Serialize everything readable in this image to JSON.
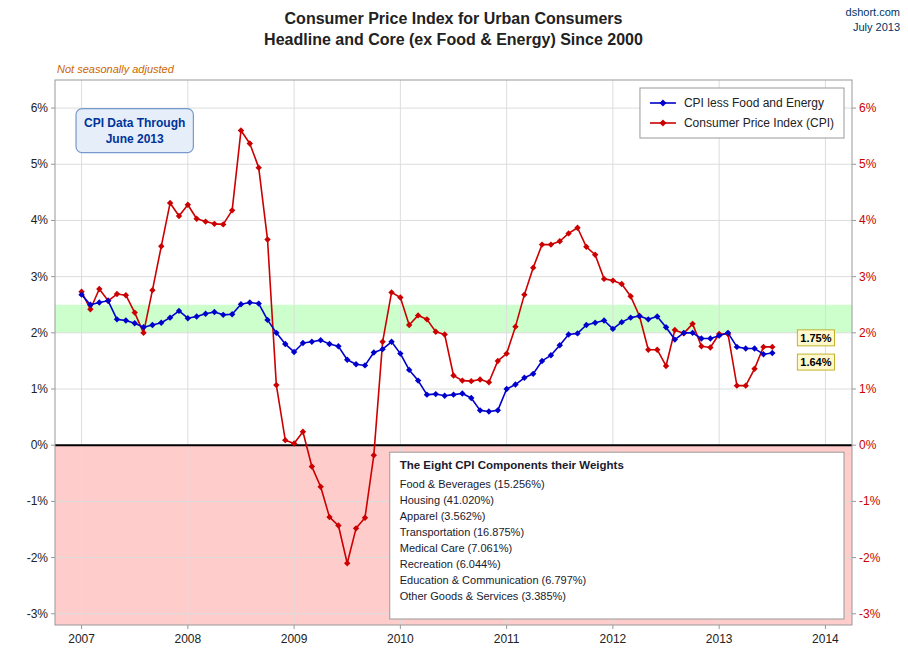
{
  "chart_data": {
    "type": "line",
    "title": "Consumer Price Index for Urban Consumers\nHeadline and Core (ex Food & Energy) Since 2000",
    "subtitle": "Not seasonally adjusted",
    "x": [
      2007.0,
      2007.083,
      2007.167,
      2007.25,
      2007.333,
      2007.417,
      2007.5,
      2007.583,
      2007.667,
      2007.75,
      2007.833,
      2007.917,
      2008.0,
      2008.083,
      2008.167,
      2008.25,
      2008.333,
      2008.417,
      2008.5,
      2008.583,
      2008.667,
      2008.75,
      2008.833,
      2008.917,
      2009.0,
      2009.083,
      2009.167,
      2009.25,
      2009.333,
      2009.417,
      2009.5,
      2009.583,
      2009.667,
      2009.75,
      2009.833,
      2009.917,
      2010.0,
      2010.083,
      2010.167,
      2010.25,
      2010.333,
      2010.417,
      2010.5,
      2010.583,
      2010.667,
      2010.75,
      2010.833,
      2010.917,
      2011.0,
      2011.083,
      2011.167,
      2011.25,
      2011.333,
      2011.417,
      2011.5,
      2011.583,
      2011.667,
      2011.75,
      2011.833,
      2011.917,
      2012.0,
      2012.083,
      2012.167,
      2012.25,
      2012.333,
      2012.417,
      2012.5,
      2012.583,
      2012.667,
      2012.75,
      2012.833,
      2012.917,
      2013.0,
      2013.083,
      2013.167,
      2013.25,
      2013.333,
      2013.417,
      2013.5
    ],
    "series": [
      {
        "name": "CPI less Food and Energy",
        "color": "#0000cc",
        "marker": "diamond",
        "values": [
          2.68,
          2.5,
          2.54,
          2.57,
          2.24,
          2.22,
          2.17,
          2.1,
          2.14,
          2.18,
          2.27,
          2.39,
          2.26,
          2.29,
          2.34,
          2.37,
          2.32,
          2.33,
          2.51,
          2.54,
          2.52,
          2.23,
          2.0,
          1.8,
          1.66,
          1.82,
          1.84,
          1.87,
          1.8,
          1.76,
          1.52,
          1.44,
          1.42,
          1.65,
          1.71,
          1.84,
          1.63,
          1.34,
          1.15,
          0.9,
          0.91,
          0.88,
          0.9,
          0.92,
          0.84,
          0.62,
          0.6,
          0.62,
          1.0,
          1.08,
          1.2,
          1.27,
          1.5,
          1.6,
          1.78,
          1.97,
          1.99,
          2.14,
          2.18,
          2.22,
          2.07,
          2.19,
          2.27,
          2.3,
          2.24,
          2.29,
          2.1,
          1.88,
          2.0,
          2.0,
          1.9,
          1.9,
          1.95,
          2.0,
          1.75,
          1.72,
          1.72,
          1.62,
          1.64
        ]
      },
      {
        "name": "Consumer Price Index (CPI)",
        "color": "#cc0000",
        "marker": "diamond",
        "values": [
          2.73,
          2.42,
          2.78,
          2.57,
          2.69,
          2.67,
          2.36,
          2.0,
          2.76,
          3.54,
          4.31,
          4.08,
          4.28,
          4.03,
          3.98,
          3.94,
          3.93,
          4.18,
          5.6,
          5.37,
          4.94,
          3.66,
          1.07,
          0.09,
          0.03,
          0.24,
          -0.38,
          -0.74,
          -1.28,
          -1.43,
          -2.1,
          -1.48,
          -1.29,
          -0.18,
          1.84,
          2.72,
          2.63,
          2.14,
          2.31,
          2.24,
          2.02,
          1.97,
          1.24,
          1.15,
          1.14,
          1.17,
          1.12,
          1.5,
          1.63,
          2.11,
          2.68,
          3.16,
          3.57,
          3.57,
          3.63,
          3.77,
          3.87,
          3.53,
          3.39,
          2.96,
          2.93,
          2.87,
          2.65,
          2.3,
          1.7,
          1.7,
          1.41,
          2.05,
          1.99,
          2.16,
          1.76,
          1.74,
          1.98,
          1.98,
          1.06,
          1.06,
          1.36,
          1.75,
          1.75
        ]
      }
    ],
    "xlim": [
      2006.75,
      2014.25
    ],
    "xticks": [
      2007,
      2008,
      2009,
      2010,
      2011,
      2012,
      2013,
      2014
    ],
    "ylim": [
      -3.2,
      6.5
    ],
    "yticks": [
      {
        "value": -3,
        "label": "-3%"
      },
      {
        "value": -2,
        "label": "-2%"
      },
      {
        "value": -1,
        "label": "-1%"
      },
      {
        "value": 0,
        "label": "0%"
      },
      {
        "value": 1,
        "label": "1%"
      },
      {
        "value": 2,
        "label": "2%"
      },
      {
        "value": 3,
        "label": "3%"
      },
      {
        "value": 4,
        "label": "4%"
      },
      {
        "value": 5,
        "label": "5%"
      },
      {
        "value": 6,
        "label": "6%"
      }
    ],
    "y2lim": [
      -3.2,
      6.5
    ],
    "y2ticks": [
      {
        "value": -3,
        "label": "-3%"
      },
      {
        "value": -2,
        "label": "-2%"
      },
      {
        "value": -1,
        "label": "-1%"
      },
      {
        "value": 0,
        "label": "0%"
      },
      {
        "value": 1,
        "label": "1%"
      },
      {
        "value": 2,
        "label": "2%"
      },
      {
        "value": 3,
        "label": "3%"
      },
      {
        "value": 4,
        "label": "4%"
      },
      {
        "value": 5,
        "label": "5%"
      },
      {
        "value": 6,
        "label": "6%"
      }
    ],
    "bands": [
      {
        "from": -3.2,
        "to": 0,
        "color": "#ffcccc"
      },
      {
        "from": 2.0,
        "to": 2.5,
        "color": "#ccffcc"
      }
    ],
    "reference_lines": [
      {
        "y": 0,
        "color": "#000000"
      }
    ],
    "annotations": [
      {
        "text": "dshort.com"
      },
      {
        "text": "July 2013"
      },
      {
        "text": "CPI Data Through\nJune 2013",
        "x": 2007.5,
        "y": 5.6
      },
      {
        "text": "1.75%",
        "point": [
          2013.5,
          1.75
        ]
      },
      {
        "text": "1.64%",
        "point": [
          2013.5,
          1.64
        ]
      }
    ],
    "text_box": {
      "title": "The Eight CPI Components their Weights",
      "lines": [
        "Food & Beverages (15.256%)",
        "Housing (41.020%)",
        "Apparel (3.562%)",
        "Transportation (16.875%)",
        "Medical Care (7.061%)",
        "Recreation (6.044%)",
        "Education & Communication (6.797%)",
        "Other Goods & Services (3.385%)"
      ]
    },
    "grid": true,
    "legend": "upper right"
  }
}
